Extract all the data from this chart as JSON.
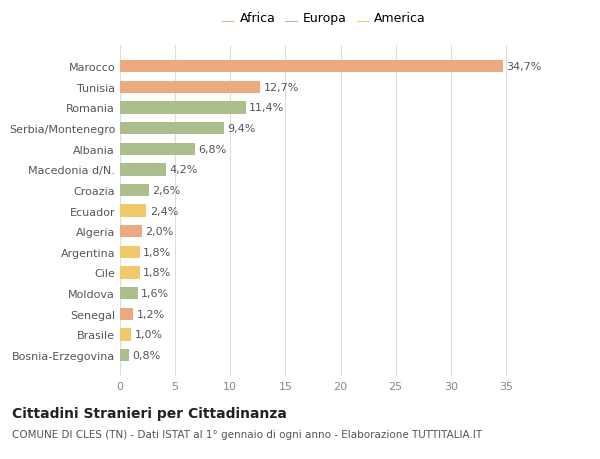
{
  "categories": [
    "Marocco",
    "Tunisia",
    "Romania",
    "Serbia/Montenegro",
    "Albania",
    "Macedonia d/N.",
    "Croazia",
    "Ecuador",
    "Algeria",
    "Argentina",
    "Cile",
    "Moldova",
    "Senegal",
    "Brasile",
    "Bosnia-Erzegovina"
  ],
  "values": [
    34.7,
    12.7,
    11.4,
    9.4,
    6.8,
    4.2,
    2.6,
    2.4,
    2.0,
    1.8,
    1.8,
    1.6,
    1.2,
    1.0,
    0.8
  ],
  "continents": [
    "Africa",
    "Africa",
    "Europa",
    "Europa",
    "Europa",
    "Europa",
    "Europa",
    "America",
    "Africa",
    "America",
    "America",
    "Europa",
    "Africa",
    "America",
    "Europa"
  ],
  "colors": {
    "Africa": "#EDAA80",
    "Europa": "#ABBE8B",
    "America": "#F0C96A"
  },
  "labels": [
    "34,7%",
    "12,7%",
    "11,4%",
    "9,4%",
    "6,8%",
    "4,2%",
    "2,6%",
    "2,4%",
    "2,0%",
    "1,8%",
    "1,8%",
    "1,6%",
    "1,2%",
    "1,0%",
    "0,8%"
  ],
  "title": "Cittadini Stranieri per Cittadinanza",
  "subtitle": "COMUNE DI CLES (TN) - Dati ISTAT al 1° gennaio di ogni anno - Elaborazione TUTTITALIA.IT",
  "legend_labels": [
    "Africa",
    "Europa",
    "America"
  ],
  "xlim": [
    0,
    37
  ],
  "xticks": [
    0,
    5,
    10,
    15,
    20,
    25,
    30,
    35
  ],
  "background_color": "#ffffff",
  "bar_height": 0.6,
  "label_fontsize": 8,
  "ytick_fontsize": 8,
  "xtick_fontsize": 8,
  "title_fontsize": 10,
  "subtitle_fontsize": 7.5,
  "legend_fontsize": 9
}
